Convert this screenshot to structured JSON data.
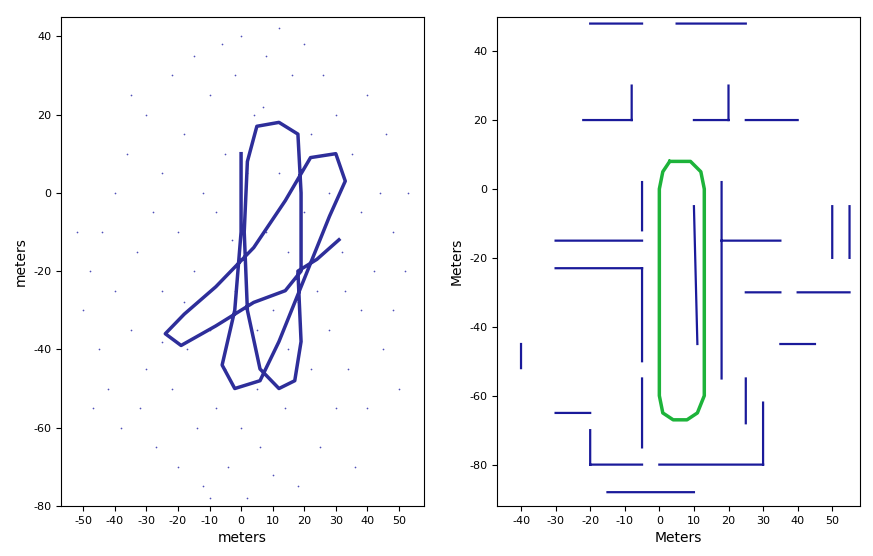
{
  "chart_data": [
    {
      "type": "scatter",
      "x_label": "meters",
      "y_label": "meters",
      "xlim": [
        -57,
        58
      ],
      "ylim": [
        -80,
        45
      ],
      "xticks": [
        -50,
        -40,
        -30,
        -20,
        -10,
        0,
        10,
        20,
        30,
        40,
        50
      ],
      "yticks": [
        -80,
        -60,
        -40,
        -20,
        0,
        20,
        40
      ],
      "grid": false,
      "series": [
        {
          "type": "scatter",
          "color": "#5050b8",
          "marker": ".",
          "x": [
            -50,
            -48,
            -45,
            -44,
            -42,
            -40,
            -40,
            -38,
            -36,
            -35,
            -33,
            -32,
            -30,
            -30,
            -28,
            -27,
            -25,
            -25,
            -22,
            -22,
            -20,
            -20,
            -18,
            -17,
            -15,
            -15,
            -14,
            -12,
            -12,
            -10,
            -10,
            -8,
            -8,
            -6,
            -5,
            -5,
            -4,
            -2,
            -2,
            0,
            0,
            2,
            2,
            4,
            5,
            6,
            8,
            8,
            10,
            10,
            12,
            12,
            14,
            15,
            16,
            18,
            20,
            20,
            22,
            22,
            24,
            25,
            26,
            28,
            28,
            30,
            30,
            32,
            34,
            35,
            36,
            38,
            38,
            40,
            40,
            42,
            44,
            45,
            46,
            48,
            48,
            50,
            52,
            53,
            -52,
            -47,
            -35,
            -10,
            5,
            15,
            -3,
            7,
            -25,
            33,
            18,
            -18
          ],
          "values": [
            -30,
            -20,
            -40,
            -10,
            -50,
            0,
            -25,
            -60,
            10,
            -35,
            -15,
            -55,
            20,
            -45,
            -5,
            -65,
            5,
            -25,
            30,
            -50,
            -10,
            -70,
            15,
            -40,
            35,
            -20,
            -60,
            0,
            -75,
            25,
            -35,
            -5,
            -55,
            38,
            10,
            -45,
            -70,
            30,
            -25,
            40,
            -60,
            5,
            -78,
            20,
            -35,
            -65,
            35,
            -10,
            -30,
            -72,
            42,
            5,
            -55,
            -15,
            30,
            -75,
            -5,
            38,
            -45,
            15,
            -25,
            -65,
            30,
            0,
            -35,
            -55,
            20,
            -15,
            -45,
            10,
            -70,
            -5,
            -30,
            25,
            -55,
            -20,
            0,
            -40,
            15,
            -10,
            -30,
            -50,
            -20,
            0,
            -10,
            -55,
            25,
            -78,
            -50,
            -40,
            -12,
            22,
            -38,
            -25,
            -28,
            -28
          ]
        },
        {
          "type": "line",
          "color": "#2e2e9a",
          "line_style": "solid",
          "x": [
            0,
            0,
            -2,
            -6,
            -2,
            6,
            12,
            20,
            28,
            33,
            30,
            22,
            14,
            4,
            -8,
            -18,
            -24,
            -19,
            -8,
            4,
            14,
            19,
            19,
            18,
            12,
            5,
            2,
            1,
            2,
            6,
            12,
            17,
            19,
            18,
            24,
            31
          ],
          "values": [
            10,
            -10,
            -30,
            -44,
            -50,
            -48,
            -38,
            -22,
            -6,
            3,
            10,
            9,
            -2,
            -14,
            -24,
            -31,
            -36,
            -39,
            -34,
            -28,
            -25,
            -20,
            0,
            15,
            18,
            17,
            8,
            -10,
            -30,
            -45,
            -50,
            -48,
            -38,
            -20,
            -17,
            -12
          ]
        }
      ]
    },
    {
      "type": "line",
      "x_label": "Meters",
      "y_label": "Meters",
      "xlim": [
        -47,
        58
      ],
      "ylim": [
        -92,
        50
      ],
      "xticks": [
        -40,
        -30,
        -20,
        -10,
        0,
        10,
        20,
        30,
        40,
        50
      ],
      "yticks": [
        -80,
        -60,
        -40,
        -20,
        0,
        20,
        40
      ],
      "grid": false,
      "series": [
        {
          "type": "line",
          "color": "#1a1a9a",
          "line_style": "solid",
          "x": [
            -20,
            -5,
            null,
            5,
            25,
            null,
            -22,
            -8,
            null,
            -8,
            -8,
            null,
            10,
            20,
            null,
            20,
            20,
            null,
            25,
            40,
            null,
            -5,
            -5,
            null,
            -30,
            -5,
            null,
            -30,
            -5,
            null,
            -5,
            -5,
            null,
            18,
            18,
            null,
            18,
            35,
            null,
            25,
            35,
            null,
            40,
            55,
            null,
            50,
            50,
            null,
            -20,
            -20,
            null,
            -20,
            -5,
            null,
            0,
            30,
            null,
            30,
            30,
            null,
            -30,
            -20,
            null,
            -40,
            -40,
            null,
            -5,
            -5,
            null,
            25,
            25,
            null,
            10,
            11,
            null,
            35,
            45,
            null,
            55,
            55,
            null,
            -15,
            10
          ],
          "values": [
            48,
            48,
            null,
            48,
            48,
            null,
            20,
            20,
            null,
            20,
            30,
            null,
            20,
            20,
            null,
            20,
            30,
            null,
            20,
            20,
            null,
            2,
            -12,
            null,
            -15,
            -15,
            null,
            -23,
            -23,
            null,
            -23,
            -50,
            null,
            2,
            -55,
            null,
            -15,
            -15,
            null,
            -30,
            -30,
            null,
            -30,
            -30,
            null,
            -20,
            -5,
            null,
            -70,
            -80,
            null,
            -80,
            -80,
            null,
            -80,
            -80,
            null,
            -62,
            -80,
            null,
            -65,
            -65,
            null,
            -45,
            -52,
            null,
            -55,
            -75,
            null,
            -55,
            -68,
            null,
            -5,
            -45,
            null,
            -45,
            -45,
            null,
            -5,
            -20,
            null,
            -88,
            -88
          ]
        },
        {
          "type": "line",
          "color": "#1db33a",
          "line_style": "solid",
          "x": [
            3,
            1,
            0,
            0,
            1,
            4,
            8,
            11,
            13,
            13,
            12,
            9,
            5,
            3
          ],
          "values": [
            8,
            5,
            0,
            -60,
            -65,
            -67,
            -67,
            -65,
            -60,
            0,
            5,
            8,
            8,
            8
          ]
        }
      ]
    }
  ]
}
